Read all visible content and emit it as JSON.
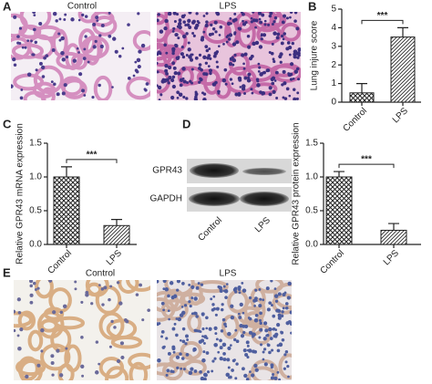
{
  "panel_labels": [
    "A",
    "B",
    "C",
    "D",
    "E"
  ],
  "histology": [
    {
      "labels": [
        "Control",
        "LPS"
      ]
    },
    {
      "labels": [
        "Control",
        "LPS"
      ]
    }
  ],
  "western_blot": {
    "bands": [
      "GPR43",
      "GAPDH"
    ],
    "lanes": [
      "Control",
      "LPS"
    ]
  },
  "chart_data": [
    {
      "type": "bar",
      "ylabel": "Lung injure score",
      "categories": [
        "Control",
        "LPS"
      ],
      "values": [
        0.5,
        3.5
      ],
      "errors": [
        0.5,
        0.5
      ],
      "ylim": [
        0,
        5
      ],
      "yticks": [
        0,
        1,
        2,
        3,
        4,
        5
      ],
      "annotation": "***"
    },
    {
      "type": "bar",
      "ylabel": "Relative GPR43 mRNA expression",
      "categories": [
        "Control",
        "LPS"
      ],
      "values": [
        1.0,
        0.28
      ],
      "errors": [
        0.15,
        0.09
      ],
      "ylim": [
        0,
        1.5
      ],
      "yticks": [
        {
          "value": 0,
          "label": "0.0"
        },
        0.5,
        {
          "value": 1,
          "label": "1.0"
        },
        1.5
      ],
      "annotation": "***"
    },
    {
      "type": "bar",
      "ylabel": "Relative GPR43 protein expression",
      "categories": [
        "Control",
        "LPS"
      ],
      "values": [
        1.0,
        0.21
      ],
      "errors": [
        0.08,
        0.1
      ],
      "ylim": [
        0,
        1.5
      ],
      "yticks": [
        {
          "value": 0,
          "label": "0.0"
        },
        0.5,
        {
          "value": 1,
          "label": "1.0"
        },
        1.5
      ],
      "annotation": "***"
    }
  ]
}
